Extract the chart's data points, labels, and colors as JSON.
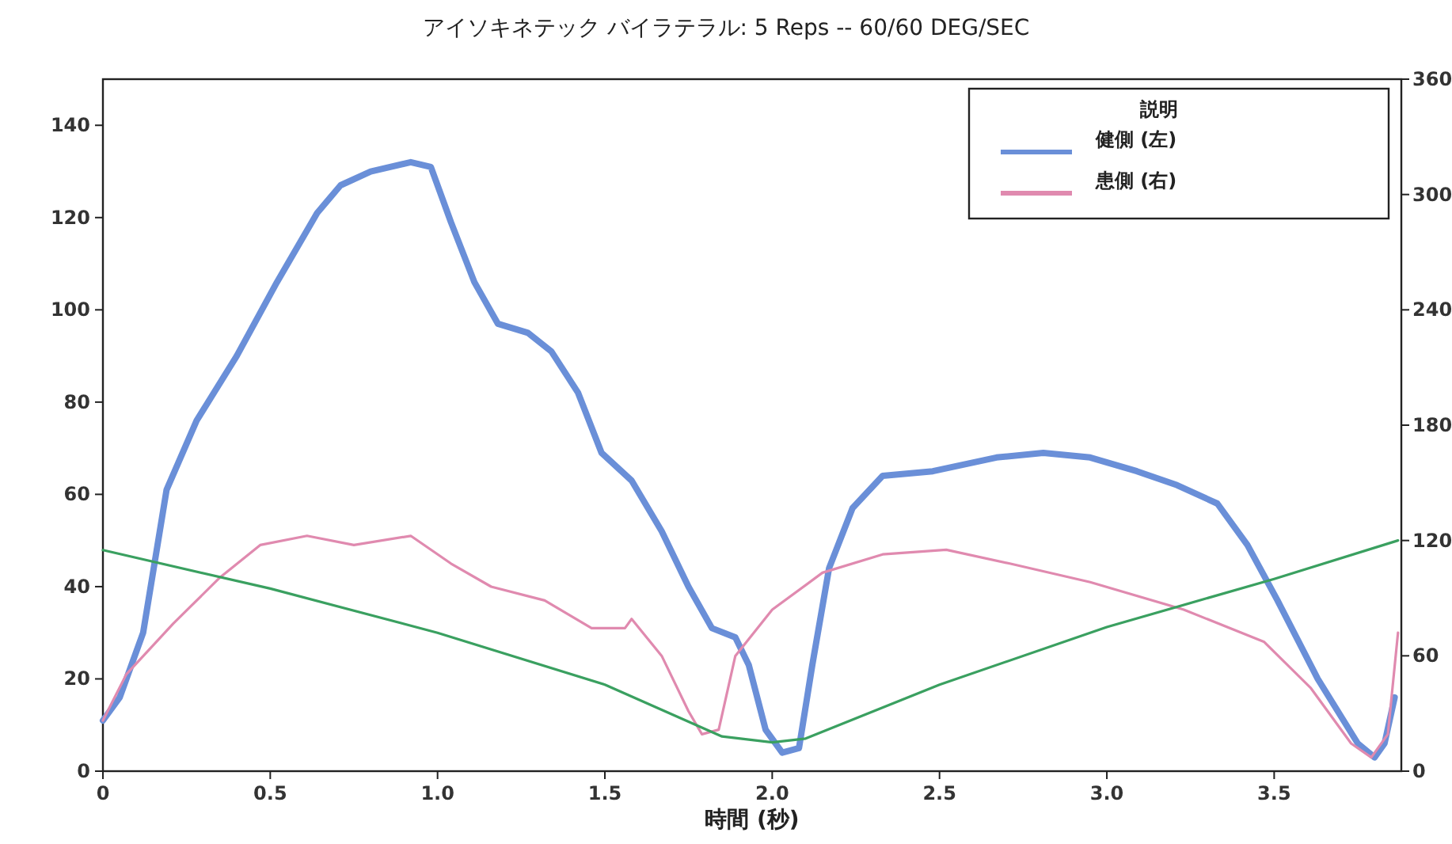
{
  "chart_data": {
    "type": "line",
    "title": "アイソキネテック バイラテラル: 5 Reps -- 60/60 DEG/SEC",
    "xlabel": "時間 (秒)",
    "legend_title": "説明",
    "legend": "top right",
    "grid": false,
    "xlim": [
      0,
      3.88
    ],
    "xticks": [
      0,
      0.5,
      {
        "value": 1,
        "label": "1.0"
      },
      1.5,
      {
        "value": 2,
        "label": "2.0"
      },
      2.5,
      {
        "value": 3,
        "label": "3.0"
      },
      3.5
    ],
    "ylim": [
      0,
      150
    ],
    "yticks": [
      0,
      20,
      40,
      60,
      80,
      100,
      120,
      140
    ],
    "y2lim": [
      0,
      360
    ],
    "y2ticks": [
      0,
      60,
      120,
      180,
      240,
      300,
      360
    ],
    "series": [
      {
        "name": "健側 (左)",
        "color": "#6a8fd8",
        "x": [
          0,
          0.05,
          0.12,
          0.19,
          0.28,
          0.4,
          0.52,
          0.64,
          0.71,
          0.8,
          0.92,
          0.98,
          1.04,
          1.11,
          1.18,
          1.27,
          1.34,
          1.42,
          1.49,
          1.58,
          1.67,
          1.75,
          1.82,
          1.89,
          1.93,
          1.98,
          2.03,
          2.08,
          2.12,
          2.17,
          2.24,
          2.33,
          2.48,
          2.67,
          2.81,
          2.95,
          3.09,
          3.21,
          3.33,
          3.42,
          3.51,
          3.63,
          3.75,
          3.8,
          3.83,
          3.86
        ],
        "values": [
          11,
          16,
          30,
          61,
          76,
          90,
          106,
          121,
          127,
          130,
          132,
          131,
          119,
          106,
          97,
          95,
          91,
          82,
          69,
          63,
          52,
          40,
          31,
          29,
          23,
          9,
          4,
          5,
          23,
          44,
          57,
          64,
          65,
          68,
          69,
          68,
          65,
          62,
          58,
          49,
          37,
          20,
          6,
          3,
          6,
          16
        ]
      },
      {
        "name": "患側 (右)",
        "color": "#e08aaf",
        "x": [
          0,
          0.07,
          0.21,
          0.35,
          0.47,
          0.61,
          0.75,
          0.92,
          1.04,
          1.16,
          1.32,
          1.46,
          1.56,
          1.58,
          1.67,
          1.75,
          1.79,
          1.84,
          1.89,
          2.0,
          2.15,
          2.33,
          2.52,
          2.71,
          2.95,
          3.23,
          3.47,
          3.61,
          3.73,
          3.79,
          3.84,
          3.87
        ],
        "values": [
          11,
          21,
          32,
          42,
          49,
          51,
          49,
          51,
          45,
          40,
          37,
          31,
          31,
          33,
          25,
          13,
          8,
          9,
          25,
          35,
          43,
          47,
          48,
          45,
          41,
          35,
          28,
          18,
          6,
          3,
          8,
          30
        ]
      },
      {
        "color": "#3aa060",
        "axis": "y2",
        "x": [
          0,
          0.5,
          1.0,
          1.5,
          1.85,
          2.0,
          2.1,
          2.5,
          3.0,
          3.5,
          3.87
        ],
        "values": [
          115,
          95,
          72,
          45,
          18,
          15,
          17,
          45,
          75,
          100,
          120
        ]
      }
    ]
  }
}
